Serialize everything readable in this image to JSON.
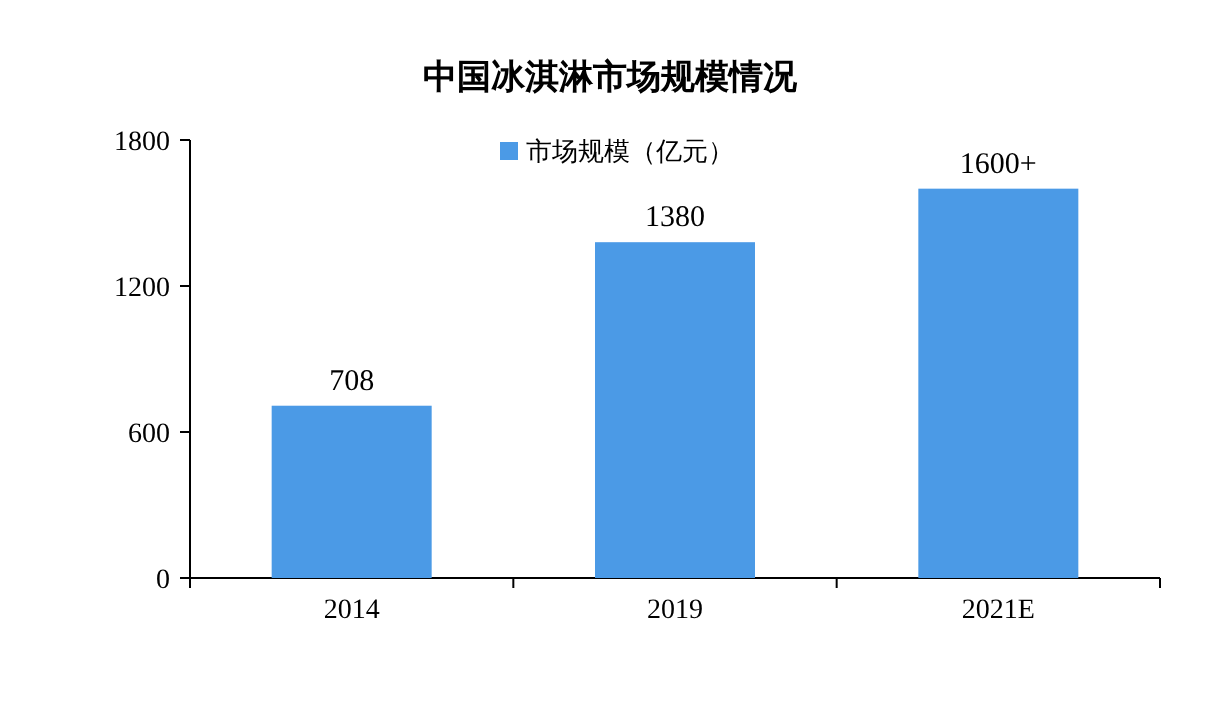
{
  "chart_data": {
    "type": "bar",
    "title": "中国冰淇淋市场规模情况",
    "categories": [
      "2014",
      "2019",
      "2021E"
    ],
    "series": [
      {
        "name": "市场规模（亿元）",
        "color": "#4b9ae6",
        "values": [
          708,
          1380,
          1600
        ],
        "value_labels": [
          "708",
          "1380",
          "1600+"
        ]
      }
    ],
    "ylim": [
      0,
      1800
    ],
    "yticks": [
      0,
      600,
      1200,
      1800
    ],
    "legend": "top"
  }
}
